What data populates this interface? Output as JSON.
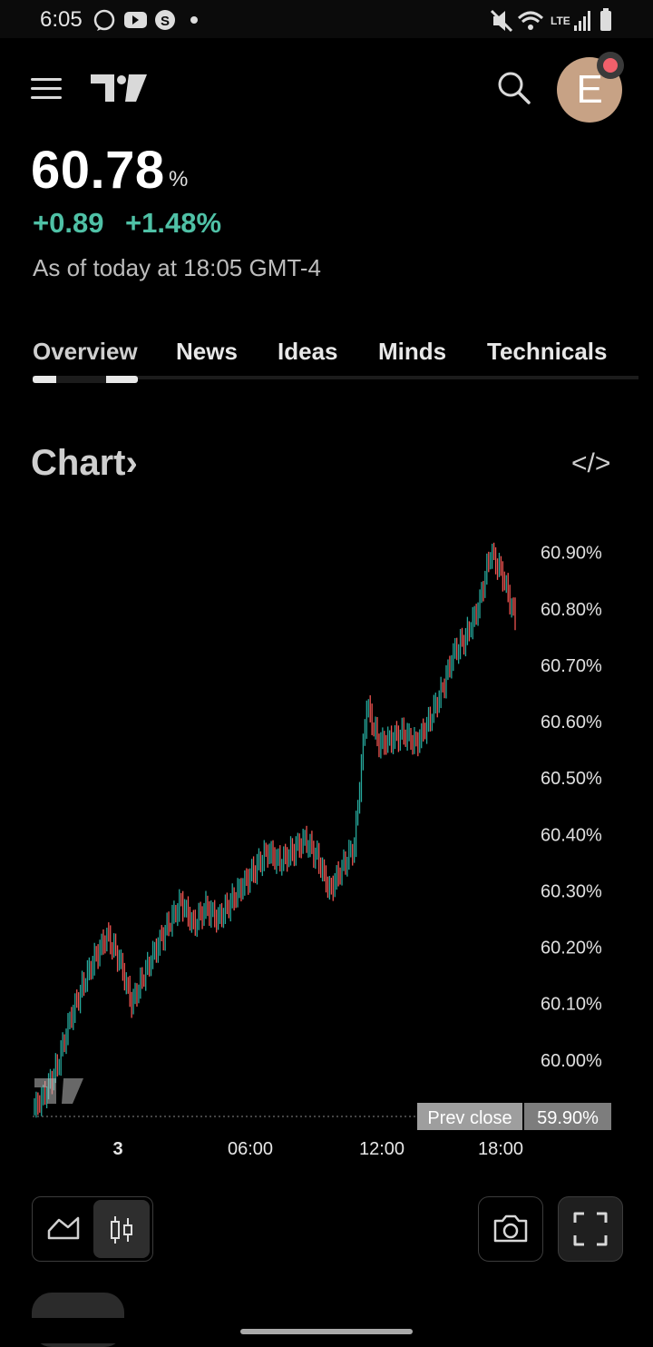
{
  "status_bar": {
    "time": "6:05",
    "network": "LTE",
    "icons": [
      "whatsapp-icon",
      "youtube-icon",
      "s-app-icon",
      "dot-icon",
      "mute-icon",
      "wifi-icon",
      "signal-icon",
      "battery-icon"
    ]
  },
  "header": {
    "avatar_letter": "E",
    "icons": [
      "menu-icon",
      "tradingview-logo",
      "search-icon"
    ]
  },
  "quote": {
    "price": "60.78",
    "unit": "%",
    "change": "+0.89",
    "change_pct": "+1.48%",
    "as_of": "As of today at 18:05 GMT-4"
  },
  "tabs": [
    "Overview",
    "News",
    "Ideas",
    "Minds",
    "Technicals"
  ],
  "chart_section": {
    "title": "Chart",
    "chevron": "›",
    "embed_label": "</>"
  },
  "chart_data": {
    "type": "line",
    "y_ticks": [
      "60.90%",
      "60.80%",
      "60.70%",
      "60.60%",
      "60.50%",
      "60.40%",
      "60.30%",
      "60.20%",
      "60.10%",
      "60.00%"
    ],
    "x_ticks": [
      "3",
      "06:00",
      "12:00",
      "18:00"
    ],
    "ylim": [
      59.9,
      60.93
    ],
    "prev_close": {
      "label": "Prev close",
      "value": "59.90%"
    },
    "series": [
      {
        "color_up": "#26a69a",
        "color_down": "#ef5350",
        "points": [
          [
            0,
            59.91
          ],
          [
            1,
            59.94
          ],
          [
            2,
            59.99
          ],
          [
            3,
            60.07
          ],
          [
            4,
            60.13
          ],
          [
            5,
            60.18
          ],
          [
            6,
            60.22
          ],
          [
            7,
            60.18
          ],
          [
            8,
            60.1
          ],
          [
            9,
            60.15
          ],
          [
            10,
            60.2
          ],
          [
            11,
            60.24
          ],
          [
            12,
            60.28
          ],
          [
            13,
            60.24
          ],
          [
            14,
            60.27
          ],
          [
            15,
            60.25
          ],
          [
            16,
            60.28
          ],
          [
            17,
            60.31
          ],
          [
            18,
            60.34
          ],
          [
            19,
            60.37
          ],
          [
            20,
            60.35
          ],
          [
            21,
            60.37
          ],
          [
            22,
            60.39
          ],
          [
            23,
            60.36
          ],
          [
            24,
            60.3
          ],
          [
            25,
            60.34
          ],
          [
            26,
            60.38
          ],
          [
            27,
            60.63
          ],
          [
            28,
            60.56
          ],
          [
            29,
            60.57
          ],
          [
            30,
            60.58
          ],
          [
            31,
            60.56
          ],
          [
            32,
            60.6
          ],
          [
            33,
            60.65
          ],
          [
            34,
            60.72
          ],
          [
            35,
            60.75
          ],
          [
            36,
            60.8
          ],
          [
            37,
            60.9
          ],
          [
            38,
            60.86
          ],
          [
            39,
            60.78
          ]
        ]
      }
    ]
  },
  "chart_controls": {
    "icons": [
      "area-chart-icon",
      "candlestick-icon",
      "camera-icon",
      "fullscreen-icon"
    ]
  }
}
